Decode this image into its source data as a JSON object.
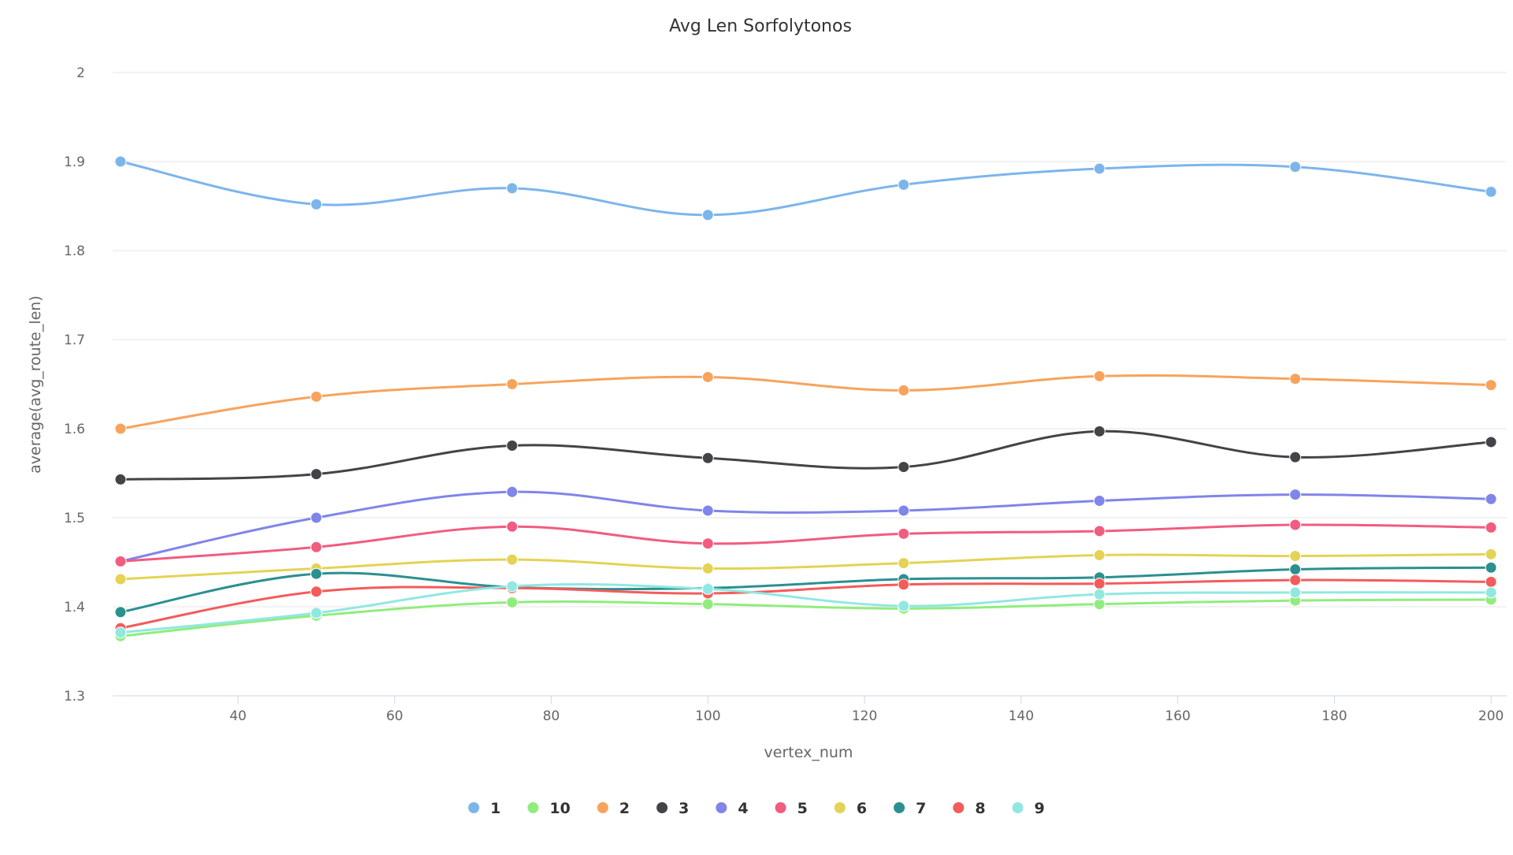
{
  "chart_data": {
    "type": "line",
    "title": "Avg Len Sorfolytonos",
    "xlabel": "vertex_num",
    "ylabel": "average(avg_route_len)",
    "x": [
      25,
      50,
      75,
      100,
      125,
      150,
      175,
      200
    ],
    "xlim": [
      24,
      202
    ],
    "ylim": [
      1.3,
      2.0
    ],
    "xticks": [
      40,
      60,
      80,
      100,
      120,
      140,
      160,
      180,
      200
    ],
    "yticks": [
      1.3,
      1.4,
      1.5,
      1.6,
      1.7,
      1.8,
      1.9,
      2
    ],
    "grid": true,
    "legend_position": "bottom",
    "series": [
      {
        "name": "1",
        "color": "#7cb5ec",
        "values": [
          1.9,
          1.852,
          1.87,
          1.84,
          1.874,
          1.892,
          1.894,
          1.866
        ]
      },
      {
        "name": "10",
        "color": "#90ed7d",
        "values": [
          1.367,
          1.39,
          1.405,
          1.403,
          1.398,
          1.403,
          1.407,
          1.408
        ]
      },
      {
        "name": "2",
        "color": "#f7a35c",
        "values": [
          1.6,
          1.636,
          1.65,
          1.658,
          1.643,
          1.659,
          1.656,
          1.649
        ]
      },
      {
        "name": "3",
        "color": "#434348",
        "values": [
          1.543,
          1.549,
          1.581,
          1.567,
          1.557,
          1.597,
          1.568,
          1.585
        ]
      },
      {
        "name": "4",
        "color": "#8085e9",
        "values": [
          1.451,
          1.5,
          1.529,
          1.508,
          1.508,
          1.519,
          1.526,
          1.521
        ]
      },
      {
        "name": "5",
        "color": "#f15c80",
        "values": [
          1.451,
          1.467,
          1.49,
          1.471,
          1.482,
          1.485,
          1.492,
          1.489
        ]
      },
      {
        "name": "6",
        "color": "#e4d354",
        "values": [
          1.431,
          1.443,
          1.453,
          1.443,
          1.449,
          1.458,
          1.457,
          1.459
        ]
      },
      {
        "name": "7",
        "color": "#2b908f",
        "values": [
          1.394,
          1.437,
          1.422,
          1.421,
          1.431,
          1.433,
          1.442,
          1.444
        ]
      },
      {
        "name": "8",
        "color": "#f45b5b",
        "values": [
          1.376,
          1.417,
          1.421,
          1.415,
          1.425,
          1.426,
          1.43,
          1.428
        ]
      },
      {
        "name": "9",
        "color": "#91e8e1",
        "values": [
          1.371,
          1.393,
          1.423,
          1.42,
          1.401,
          1.414,
          1.416,
          1.416
        ]
      }
    ]
  }
}
